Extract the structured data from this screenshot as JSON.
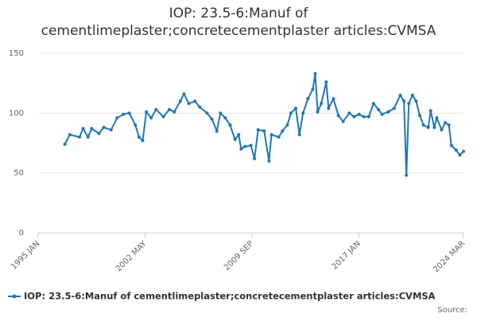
{
  "chart_data": {
    "type": "line",
    "title": [
      "IOP: 23.5-6:Manuf of",
      "cementlimeplaster;concretecementplaster articles:CVMSA"
    ],
    "x": [
      "1996-11",
      "1997-03",
      "1997-11",
      "1998-02",
      "1998-06",
      "1998-09",
      "1999-03",
      "1999-07",
      "2000-01",
      "2000-06",
      "2000-11",
      "2001-04",
      "2001-09",
      "2001-12",
      "2002-03",
      "2002-06",
      "2002-10",
      "2003-02",
      "2003-08",
      "2004-01",
      "2004-05",
      "2004-10",
      "2005-01",
      "2005-05",
      "2005-10",
      "2006-02",
      "2006-08",
      "2006-12",
      "2007-04",
      "2007-07",
      "2007-11",
      "2008-03",
      "2008-07",
      "2008-10",
      "2008-12",
      "2009-03",
      "2009-08",
      "2009-11",
      "2010-02",
      "2010-07",
      "2010-11",
      "2011-01",
      "2011-07",
      "2011-10",
      "2012-02",
      "2012-05",
      "2012-09",
      "2012-12",
      "2013-03",
      "2013-07",
      "2013-11",
      "2014-01",
      "2014-03",
      "2014-06",
      "2014-10",
      "2014-12",
      "2015-04",
      "2015-08",
      "2015-12",
      "2016-05",
      "2016-09",
      "2017-01",
      "2017-05",
      "2017-09",
      "2018-01",
      "2018-05",
      "2018-08",
      "2019-01",
      "2019-06",
      "2019-11",
      "2020-02",
      "2020-04",
      "2020-06",
      "2020-09",
      "2020-12",
      "2021-03",
      "2021-06",
      "2021-10",
      "2021-12",
      "2022-03",
      "2022-05",
      "2022-09",
      "2022-12",
      "2023-03",
      "2023-05",
      "2023-09",
      "2023-12",
      "2024-03"
    ],
    "series": [
      {
        "name": "IOP: 23.5-6:Manuf of cementlimeplaster;concretecementplaster articles:CVMSA",
        "color": "#1f77b4",
        "values": [
          74,
          82,
          80,
          87,
          80,
          87,
          83,
          88,
          86,
          96,
          99,
          100,
          90,
          80,
          77,
          101,
          96,
          103,
          97,
          103,
          101,
          110,
          116,
          108,
          110,
          105,
          100,
          95,
          85,
          100,
          96,
          90,
          78,
          82,
          70,
          72,
          73,
          62,
          86,
          85,
          60,
          82,
          80,
          85,
          90,
          100,
          104,
          82,
          100,
          112,
          120,
          133,
          101,
          108,
          126,
          104,
          112,
          98,
          93,
          100,
          97,
          99,
          97,
          97,
          108,
          103,
          99,
          101,
          104,
          115,
          110,
          48,
          108,
          115,
          110,
          98,
          90,
          88,
          102,
          88,
          96,
          86,
          92,
          90,
          73,
          69,
          65,
          68
        ]
      }
    ],
    "xlim": [
      "1995-01",
      "2024-03"
    ],
    "xticks": [
      {
        "value": "1995-01",
        "label": "1995 JAN"
      },
      {
        "value": "2002-05",
        "label": "2002 MAY"
      },
      {
        "value": "2009-09",
        "label": "2009 SEP"
      },
      {
        "value": "2017-01",
        "label": "2017 JAN"
      },
      {
        "value": "2024-03",
        "label": "2024 MAR"
      }
    ],
    "ylim": [
      0,
      150
    ],
    "yticks": [
      0,
      50,
      100,
      150
    ],
    "grid": true,
    "source": "Source:"
  }
}
